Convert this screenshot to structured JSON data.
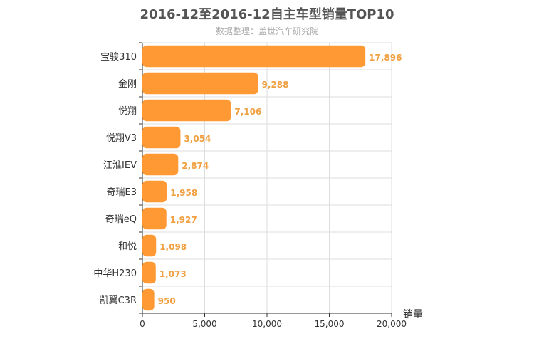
{
  "chart_data": {
    "type": "bar",
    "orientation": "horizontal",
    "title": "2016-12至2016-12自主车型销量TOP10",
    "subtitle": "数据整理：盖世汽车研究院",
    "xlabel": "销量",
    "ylabel": "",
    "xlim": [
      0,
      20000
    ],
    "x_ticks": [
      "0",
      "5,000",
      "10,000",
      "15,000",
      "20,000"
    ],
    "grid": true,
    "categories": [
      "宝骏310",
      "金刚",
      "悦翔",
      "悦翔V3",
      "江淮IEV",
      "奇瑞E3",
      "奇瑞eQ",
      "和悦",
      "中华H230",
      "凯翼C3R"
    ],
    "values": [
      17896,
      9288,
      7106,
      3054,
      2874,
      1958,
      1927,
      1098,
      1073,
      950
    ],
    "value_labels": [
      "17,896",
      "9,288",
      "7,106",
      "3,054",
      "2,874",
      "1,958",
      "1,927",
      "1,098",
      "1,073",
      "950"
    ],
    "bar_color": "#ff9933",
    "label_color": "#f0a040"
  }
}
